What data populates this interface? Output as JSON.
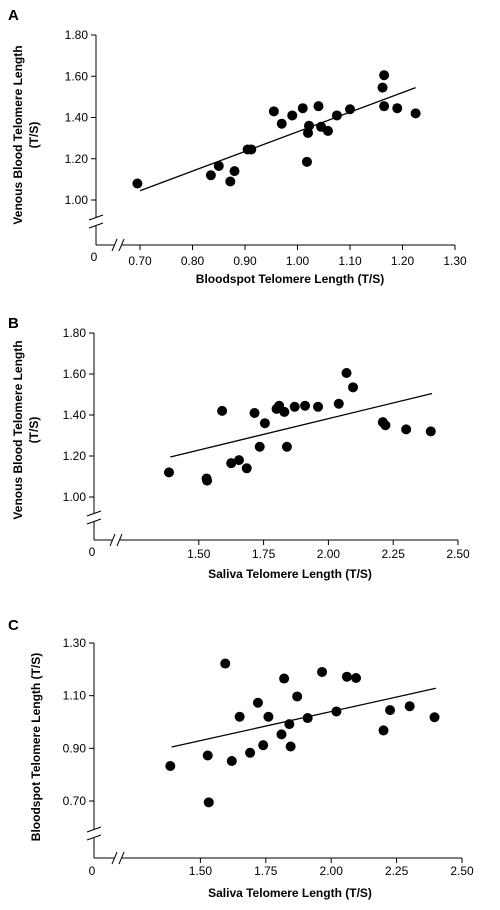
{
  "chart_data": [
    {
      "type": "scatter",
      "panel_label": "A",
      "xlabel": "Bloodspot Telomere Length (T/S)",
      "ylabel": "Venous Blood Telomere Length (T/S)",
      "xlim": [
        0.7,
        1.3
      ],
      "ylim": [
        1.0,
        1.8
      ],
      "x_ticks": [
        "0.70",
        "0.80",
        "0.90",
        "1.00",
        "1.10",
        "1.20",
        "1.30"
      ],
      "y_ticks": [
        "1.00",
        "1.20",
        "1.40",
        "1.60",
        "1.80"
      ],
      "x_origin_label": "0",
      "axis_break": true,
      "grid": false,
      "trendline": {
        "x": [
          0.7,
          1.225
        ],
        "y": [
          1.045,
          1.545
        ]
      },
      "points": [
        {
          "x": 0.695,
          "y": 1.08
        },
        {
          "x": 0.835,
          "y": 1.12
        },
        {
          "x": 0.85,
          "y": 1.165
        },
        {
          "x": 0.872,
          "y": 1.09
        },
        {
          "x": 0.88,
          "y": 1.14
        },
        {
          "x": 0.905,
          "y": 1.245
        },
        {
          "x": 0.912,
          "y": 1.245
        },
        {
          "x": 0.955,
          "y": 1.43
        },
        {
          "x": 0.97,
          "y": 1.37
        },
        {
          "x": 0.99,
          "y": 1.41
        },
        {
          "x": 1.01,
          "y": 1.445
        },
        {
          "x": 1.018,
          "y": 1.185
        },
        {
          "x": 1.02,
          "y": 1.325
        },
        {
          "x": 1.022,
          "y": 1.36
        },
        {
          "x": 1.04,
          "y": 1.455
        },
        {
          "x": 1.045,
          "y": 1.355
        },
        {
          "x": 1.058,
          "y": 1.335
        },
        {
          "x": 1.075,
          "y": 1.41
        },
        {
          "x": 1.1,
          "y": 1.44
        },
        {
          "x": 1.165,
          "y": 1.605
        },
        {
          "x": 1.162,
          "y": 1.545
        },
        {
          "x": 1.165,
          "y": 1.455
        },
        {
          "x": 1.19,
          "y": 1.445
        },
        {
          "x": 1.225,
          "y": 1.42
        }
      ]
    },
    {
      "type": "scatter",
      "panel_label": "B",
      "xlabel": "Saliva Telomere Length (T/S)",
      "ylabel": "Venous Blood Telomere Length (T/S)",
      "xlim": [
        1.25,
        2.5
      ],
      "ylim": [
        1.0,
        1.8
      ],
      "x_ticks": [
        "1.50",
        "1.75",
        "2.00",
        "2.25",
        "2.50"
      ],
      "x_tick_values": [
        1.5,
        1.75,
        2.0,
        2.25,
        2.5
      ],
      "y_ticks": [
        "1.00",
        "1.20",
        "1.40",
        "1.60",
        "1.80"
      ],
      "x_origin_label": "0",
      "axis_break": true,
      "grid": false,
      "trendline": {
        "x": [
          1.39,
          2.4
        ],
        "y": [
          1.195,
          1.505
        ]
      },
      "points": [
        {
          "x": 1.385,
          "y": 1.12
        },
        {
          "x": 1.53,
          "y": 1.09
        },
        {
          "x": 1.532,
          "y": 1.08
        },
        {
          "x": 1.59,
          "y": 1.42
        },
        {
          "x": 1.625,
          "y": 1.165
        },
        {
          "x": 1.655,
          "y": 1.18
        },
        {
          "x": 1.685,
          "y": 1.14
        },
        {
          "x": 1.715,
          "y": 1.41
        },
        {
          "x": 1.735,
          "y": 1.245
        },
        {
          "x": 1.755,
          "y": 1.36
        },
        {
          "x": 1.8,
          "y": 1.43
        },
        {
          "x": 1.81,
          "y": 1.445
        },
        {
          "x": 1.83,
          "y": 1.415
        },
        {
          "x": 1.84,
          "y": 1.245
        },
        {
          "x": 1.87,
          "y": 1.44
        },
        {
          "x": 1.91,
          "y": 1.445
        },
        {
          "x": 1.96,
          "y": 1.44
        },
        {
          "x": 2.04,
          "y": 1.455
        },
        {
          "x": 2.07,
          "y": 1.605
        },
        {
          "x": 2.095,
          "y": 1.535
        },
        {
          "x": 2.21,
          "y": 1.365
        },
        {
          "x": 2.22,
          "y": 1.35
        },
        {
          "x": 2.3,
          "y": 1.33
        },
        {
          "x": 2.395,
          "y": 1.32
        }
      ]
    },
    {
      "type": "scatter",
      "panel_label": "C",
      "xlabel": "Saliva Telomere Length (T/S)",
      "ylabel": "Bloodspot Telomere Length (T/S)",
      "xlim": [
        1.25,
        2.5
      ],
      "ylim": [
        0.7,
        1.3
      ],
      "x_ticks": [
        "1.50",
        "1.75",
        "2.00",
        "2.25",
        "2.50"
      ],
      "x_tick_values": [
        1.5,
        1.75,
        2.0,
        2.25,
        2.5
      ],
      "y_ticks": [
        "0.70",
        "0.90",
        "1.10",
        "1.30"
      ],
      "y_tick_values": [
        0.7,
        0.9,
        1.1,
        1.3
      ],
      "x_origin_label": "0",
      "axis_break": true,
      "grid": false,
      "trendline": {
        "x": [
          1.39,
          2.4
        ],
        "y": [
          0.905,
          1.128
        ]
      },
      "points": [
        {
          "x": 1.385,
          "y": 0.833
        },
        {
          "x": 1.528,
          "y": 0.873
        },
        {
          "x": 1.532,
          "y": 0.695
        },
        {
          "x": 1.595,
          "y": 1.222
        },
        {
          "x": 1.62,
          "y": 0.852
        },
        {
          "x": 1.65,
          "y": 1.02
        },
        {
          "x": 1.69,
          "y": 0.883
        },
        {
          "x": 1.72,
          "y": 1.073
        },
        {
          "x": 1.74,
          "y": 0.912
        },
        {
          "x": 1.76,
          "y": 1.02
        },
        {
          "x": 1.81,
          "y": 0.953
        },
        {
          "x": 1.82,
          "y": 1.165
        },
        {
          "x": 1.84,
          "y": 0.992
        },
        {
          "x": 1.845,
          "y": 0.907
        },
        {
          "x": 1.87,
          "y": 1.097
        },
        {
          "x": 1.91,
          "y": 1.015
        },
        {
          "x": 1.965,
          "y": 1.19
        },
        {
          "x": 2.02,
          "y": 1.04
        },
        {
          "x": 2.06,
          "y": 1.172
        },
        {
          "x": 2.095,
          "y": 1.167
        },
        {
          "x": 2.2,
          "y": 0.968
        },
        {
          "x": 2.225,
          "y": 1.045
        },
        {
          "x": 2.3,
          "y": 1.06
        },
        {
          "x": 2.395,
          "y": 1.018
        }
      ]
    }
  ]
}
